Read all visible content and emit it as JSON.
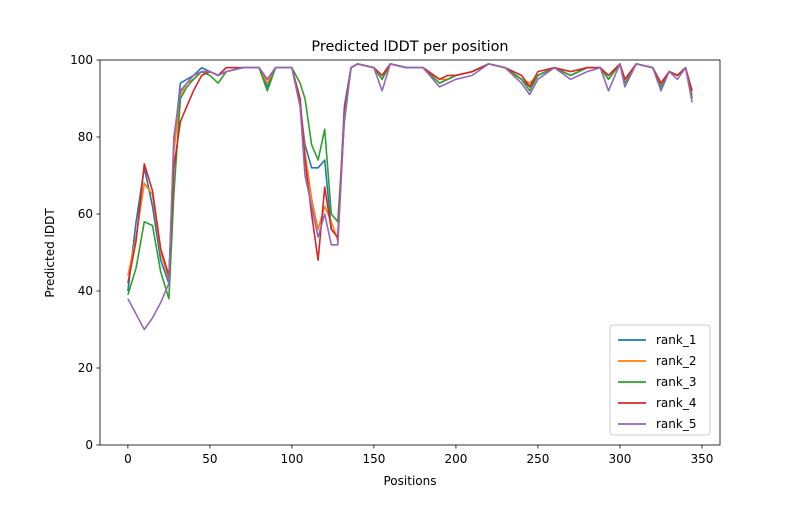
{
  "chart_data": {
    "type": "line",
    "title": "Predicted lDDT per position",
    "xlabel": "Positions",
    "ylabel": "Predicted lDDT",
    "xlim": [
      -17,
      361
    ],
    "ylim": [
      0,
      100
    ],
    "xticks": [
      0,
      50,
      100,
      150,
      200,
      250,
      300,
      350
    ],
    "yticks": [
      0,
      20,
      40,
      60,
      80,
      100
    ],
    "grid": false,
    "legend_position": "lower right",
    "x": [
      0,
      5,
      10,
      15,
      20,
      25,
      28,
      32,
      36,
      40,
      45,
      50,
      55,
      60,
      70,
      80,
      85,
      90,
      100,
      105,
      108,
      112,
      116,
      120,
      124,
      128,
      132,
      136,
      140,
      150,
      155,
      160,
      170,
      180,
      190,
      195,
      200,
      210,
      220,
      230,
      240,
      245,
      250,
      260,
      270,
      280,
      288,
      293,
      300,
      303,
      310,
      320,
      325,
      330,
      335,
      340,
      344
    ],
    "series": [
      {
        "name": "rank_1",
        "color": "#1f77b4",
        "values": [
          40,
          58,
          72,
          62,
          48,
          42,
          78,
          94,
          95,
          96,
          98,
          97,
          96,
          98,
          98,
          98,
          93,
          98,
          98,
          88,
          78,
          72,
          72,
          74,
          56,
          54,
          88,
          98,
          99,
          98,
          95,
          99,
          98,
          98,
          94,
          95,
          96,
          97,
          99,
          98,
          95,
          93,
          96,
          98,
          96,
          98,
          98,
          95,
          99,
          95,
          99,
          98,
          93,
          97,
          96,
          98,
          90
        ]
      },
      {
        "name": "rank_2",
        "color": "#ff7f0e",
        "values": [
          44,
          54,
          68,
          65,
          50,
          43,
          76,
          91,
          94,
          95,
          97,
          97,
          96,
          97,
          98,
          98,
          94,
          98,
          98,
          89,
          76,
          64,
          56,
          62,
          58,
          53,
          86,
          98,
          99,
          98,
          95,
          99,
          98,
          98,
          95,
          95,
          96,
          97,
          99,
          98,
          95,
          94,
          96,
          98,
          97,
          98,
          98,
          96,
          99,
          95,
          99,
          98,
          94,
          97,
          96,
          98,
          91
        ]
      },
      {
        "name": "rank_3",
        "color": "#2ca02c",
        "values": [
          39,
          46,
          58,
          57,
          45,
          38,
          65,
          90,
          93,
          95,
          97,
          96,
          94,
          97,
          98,
          98,
          92,
          98,
          98,
          94,
          90,
          78,
          74,
          82,
          60,
          58,
          84,
          98,
          99,
          98,
          95,
          99,
          98,
          98,
          94,
          95,
          96,
          97,
          99,
          98,
          95,
          92,
          96,
          98,
          96,
          98,
          98,
          95,
          99,
          94,
          99,
          98,
          93,
          97,
          96,
          98,
          90
        ]
      },
      {
        "name": "rank_4",
        "color": "#d62728",
        "values": [
          42,
          53,
          73,
          66,
          51,
          44,
          72,
          84,
          88,
          92,
          96,
          97,
          96,
          98,
          98,
          98,
          95,
          98,
          98,
          90,
          74,
          60,
          48,
          67,
          56,
          54,
          87,
          98,
          99,
          98,
          96,
          99,
          98,
          98,
          95,
          96,
          96,
          97,
          99,
          98,
          96,
          93,
          97,
          98,
          97,
          98,
          98,
          96,
          99,
          95,
          99,
          98,
          94,
          97,
          96,
          98,
          92
        ]
      },
      {
        "name": "rank_5",
        "color": "#9467bd",
        "values": [
          38,
          34,
          30,
          33,
          37,
          42,
          80,
          92,
          94,
          96,
          97,
          97,
          96,
          97,
          98,
          98,
          95,
          98,
          98,
          88,
          70,
          62,
          54,
          60,
          52,
          52,
          85,
          98,
          99,
          98,
          92,
          99,
          98,
          98,
          93,
          94,
          95,
          96,
          99,
          98,
          94,
          91,
          95,
          98,
          95,
          97,
          98,
          92,
          99,
          93,
          99,
          98,
          92,
          97,
          95,
          98,
          89
        ]
      }
    ]
  }
}
